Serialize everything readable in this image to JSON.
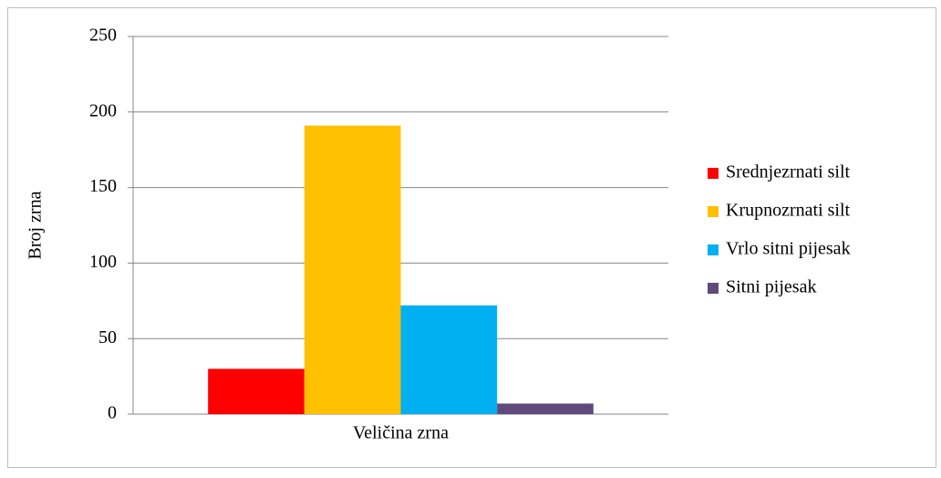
{
  "chart_data": {
    "type": "bar",
    "categories": [
      "Veličina zrna"
    ],
    "y_label": "Broj zrna",
    "series": [
      {
        "name": "Srednjezrnati silt",
        "color": "#ff0000",
        "values": [
          30
        ]
      },
      {
        "name": "Krupnozrnati silt",
        "color": "#ffc000",
        "values": [
          191
        ]
      },
      {
        "name": "Vrlo sitni pijesak",
        "color": "#00b0f0",
        "values": [
          72
        ]
      },
      {
        "name": "Sitni pijesak",
        "color": "#604a7b",
        "values": [
          7
        ]
      }
    ],
    "ylim": [
      0,
      250
    ],
    "yticks": [
      0,
      50,
      100,
      150,
      200,
      250
    ],
    "grid": true,
    "legend": "right"
  }
}
